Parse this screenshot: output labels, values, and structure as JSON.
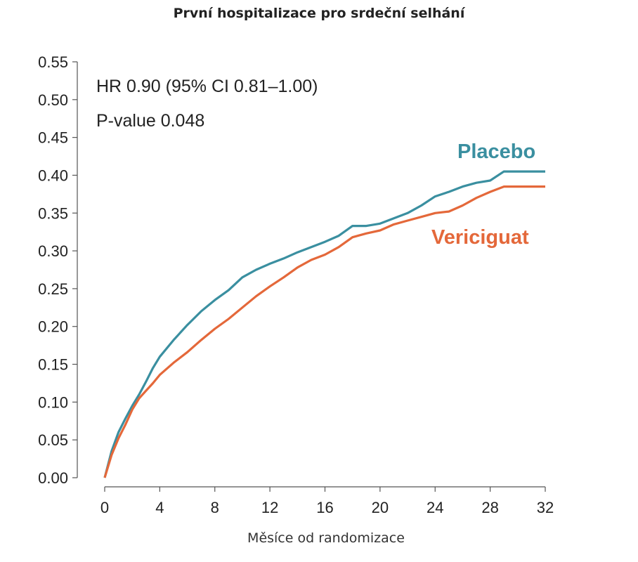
{
  "chart_data": {
    "type": "line",
    "title": "První hospitalizace pro srdeční selhání",
    "xlabel": "Měsíce od randomizace",
    "ylabel": "",
    "xlim": [
      0,
      32
    ],
    "ylim": [
      0,
      0.55
    ],
    "xticks": [
      0,
      4,
      8,
      12,
      16,
      20,
      24,
      28,
      32
    ],
    "yticks": [
      0.0,
      0.05,
      0.1,
      0.15,
      0.2,
      0.25,
      0.3,
      0.35,
      0.4,
      0.45,
      0.5,
      0.55
    ],
    "ytick_labels": [
      "0.00",
      "0.05",
      "0.10",
      "0.15",
      "0.20",
      "0.25",
      "0.30",
      "0.35",
      "0.40",
      "0.45",
      "0.50",
      "0.55"
    ],
    "xtick_labels": [
      "0",
      "4",
      "8",
      "12",
      "16",
      "20",
      "24",
      "28",
      "32"
    ],
    "grid": false,
    "annotations": [
      "HR 0.90 (95% CI 0.81–1.00)",
      "P-value 0.048"
    ],
    "series": [
      {
        "name": "Placebo",
        "color": "#3a8fa0",
        "x": [
          0,
          0.5,
          1,
          1.5,
          2,
          2.5,
          3,
          3.5,
          4,
          5,
          6,
          7,
          8,
          9,
          10,
          11,
          12,
          13,
          14,
          15,
          16,
          17,
          18,
          19,
          20,
          21,
          22,
          23,
          24,
          25,
          26,
          27,
          28,
          29,
          30,
          31,
          32
        ],
        "y": [
          0.0,
          0.035,
          0.06,
          0.078,
          0.095,
          0.11,
          0.127,
          0.145,
          0.16,
          0.182,
          0.202,
          0.22,
          0.235,
          0.248,
          0.265,
          0.275,
          0.283,
          0.29,
          0.298,
          0.305,
          0.312,
          0.32,
          0.333,
          0.333,
          0.336,
          0.343,
          0.35,
          0.36,
          0.372,
          0.378,
          0.385,
          0.39,
          0.393,
          0.405,
          0.405,
          0.405,
          0.405
        ]
      },
      {
        "name": "Vericiguat",
        "color": "#e4683a",
        "x": [
          0,
          0.5,
          1,
          1.5,
          2,
          2.5,
          3,
          3.5,
          4,
          5,
          6,
          7,
          8,
          9,
          10,
          11,
          12,
          13,
          14,
          15,
          16,
          17,
          18,
          19,
          20,
          21,
          22,
          23,
          24,
          25,
          26,
          27,
          28,
          29,
          30,
          31,
          32
        ],
        "y": [
          0.0,
          0.03,
          0.052,
          0.07,
          0.09,
          0.105,
          0.115,
          0.125,
          0.136,
          0.152,
          0.166,
          0.182,
          0.197,
          0.21,
          0.225,
          0.24,
          0.253,
          0.265,
          0.278,
          0.288,
          0.295,
          0.305,
          0.318,
          0.323,
          0.327,
          0.335,
          0.34,
          0.345,
          0.35,
          0.352,
          0.36,
          0.37,
          0.378,
          0.385,
          0.385,
          0.385,
          0.385
        ]
      }
    ]
  }
}
